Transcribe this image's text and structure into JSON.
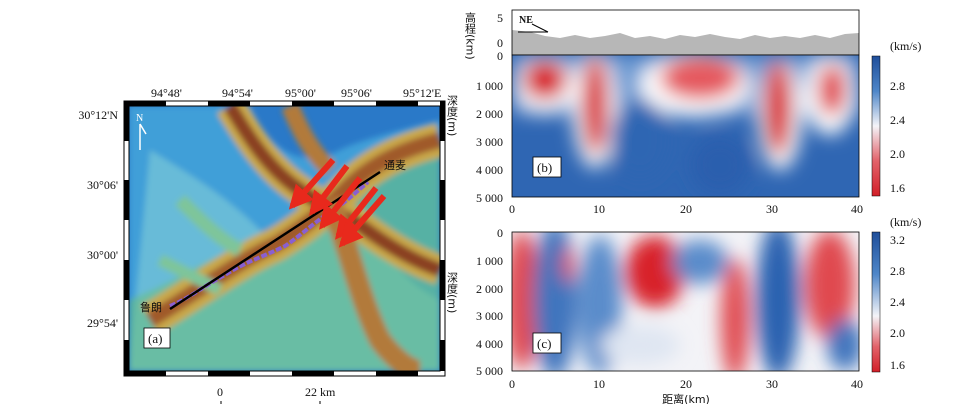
{
  "map": {
    "top_ticks": [
      "94°48'",
      "94°54'",
      "95°00'",
      "95°06'",
      "95°12'E"
    ],
    "left_ticks": [
      "30°12'N",
      "30°06'",
      "30°00'",
      "29°54'"
    ],
    "north": "N",
    "place_start": "鲁朗",
    "place_end": "通麦",
    "label": "(a)",
    "scale_zero": "0",
    "scale_dist": "22 km"
  },
  "panel_b": {
    "label": "(b)",
    "ne_label": "NE",
    "elev_axis": "高程(km)",
    "elev_ticks": [
      "5",
      "0"
    ],
    "depth_axis": "深度(m)",
    "depth_ticks": [
      "0",
      "1 000",
      "2 000",
      "3 000",
      "4 000",
      "5 000"
    ],
    "x_ticks": [
      "0",
      "10",
      "20",
      "30",
      "40"
    ],
    "cb_unit": "(km/s)",
    "cb_ticks": [
      "2.8",
      "2.4",
      "2.0",
      "1.6"
    ]
  },
  "panel_c": {
    "label": "(c)",
    "depth_axis": "深度(m)",
    "depth_ticks": [
      "0",
      "1 000",
      "2 000",
      "3 000",
      "4 000",
      "5 000"
    ],
    "x_ticks": [
      "0",
      "10",
      "20",
      "30",
      "40"
    ],
    "x_axis": "距离(km)",
    "cb_unit": "(km/s)",
    "cb_ticks": [
      "3.2",
      "2.8",
      "2.4",
      "2.0",
      "1.6"
    ]
  },
  "colors": {
    "velocity_low": "#d7262e",
    "velocity_mid": "#ffffff",
    "velocity_high": "#2b62b0",
    "elevation_fill": "#b7b7b7",
    "route": "#8a5fd1",
    "arrows": "#e8291c"
  }
}
